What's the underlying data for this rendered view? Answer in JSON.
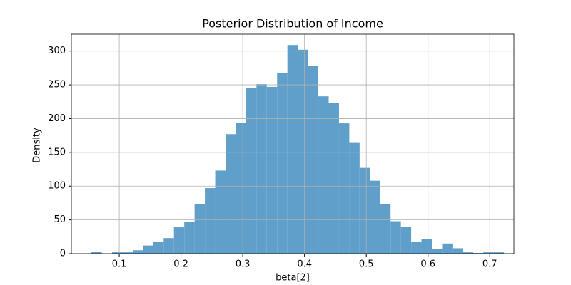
{
  "chart_data": {
    "type": "histogram",
    "title": "Posterior Distribution of Income",
    "xlabel": "beta[2]",
    "ylabel": "Density",
    "bins": [
      0.055,
      0.0717,
      0.0884,
      0.1051,
      0.1218,
      0.1385,
      0.1552,
      0.1719,
      0.1886,
      0.2053,
      0.222,
      0.2387,
      0.2554,
      0.2721,
      0.2888,
      0.3055,
      0.3222,
      0.3389,
      0.3556,
      0.3723,
      0.389,
      0.4057,
      0.4224,
      0.4391,
      0.4558,
      0.4725,
      0.4892,
      0.5059,
      0.5226,
      0.5393,
      0.556,
      0.5727,
      0.5894,
      0.6061,
      0.6228,
      0.6395,
      0.6562,
      0.6729,
      0.6896,
      0.7063,
      0.723
    ],
    "counts": [
      3,
      0,
      2,
      2,
      5,
      12,
      18,
      23,
      39,
      47,
      73,
      97,
      123,
      177,
      194,
      245,
      251,
      247,
      267,
      309,
      302,
      278,
      233,
      223,
      193,
      164,
      127,
      108,
      73,
      48,
      40,
      18,
      22,
      7,
      15,
      8,
      2,
      1,
      2,
      2
    ],
    "color": "#5f9fca",
    "xlim": [
      0.0225,
      0.739
    ],
    "ylim": [
      0,
      325
    ],
    "xticks": [
      0.1,
      0.2,
      0.3,
      0.4,
      0.5,
      0.6,
      0.7
    ],
    "yticks": [
      0,
      50,
      100,
      150,
      200,
      250,
      300
    ],
    "grid": true
  }
}
